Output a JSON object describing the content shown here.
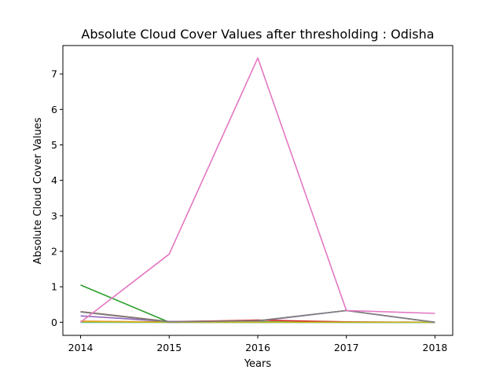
{
  "chart_data": {
    "type": "line",
    "title": "Absolute Cloud Cover Values after thresholding : Odisha",
    "xlabel": "Years",
    "ylabel": "Absolute Cloud Cover Values",
    "x": [
      2014,
      2015,
      2016,
      2017,
      2018
    ],
    "xlim": [
      2013.8,
      2018.2
    ],
    "ylim": [
      -0.37,
      7.8
    ],
    "xticks": [
      "2014",
      "2015",
      "2016",
      "2017",
      "2018"
    ],
    "yticks": [
      "0",
      "1",
      "2",
      "3",
      "4",
      "5",
      "6",
      "7"
    ],
    "grid": false,
    "legend": "none",
    "series": [
      {
        "color": "#2ca02c",
        "values": [
          1.05,
          0.0,
          0.01,
          0.0,
          0.0
        ]
      },
      {
        "color": "#8c564b",
        "values": [
          0.3,
          0.02,
          0.04,
          0.33,
          0.0
        ]
      },
      {
        "color": "#9467bd",
        "values": [
          0.18,
          0.02,
          0.03,
          0.33,
          0.0
        ]
      },
      {
        "color": "#d62728",
        "values": [
          0.02,
          0.01,
          0.06,
          0.01,
          0.0
        ]
      },
      {
        "color": "#ff7f0e",
        "values": [
          0.03,
          0.0,
          0.0,
          0.0,
          0.0
        ]
      },
      {
        "color": "#1f77b4",
        "values": [
          0.0,
          0.0,
          0.0,
          0.0,
          0.0
        ]
      },
      {
        "color": "#17becf",
        "values": [
          0.0,
          0.0,
          0.0,
          0.0,
          0.0
        ]
      },
      {
        "color": "#bcbd22",
        "values": [
          0.01,
          0.0,
          0.0,
          0.0,
          0.0
        ]
      },
      {
        "color": "#7f7f7f",
        "values": [
          0.29,
          0.01,
          0.04,
          0.33,
          0.0
        ]
      },
      {
        "color": "#e377c2",
        "values": [
          0.0,
          1.92,
          7.45,
          0.33,
          0.25
        ]
      }
    ]
  }
}
